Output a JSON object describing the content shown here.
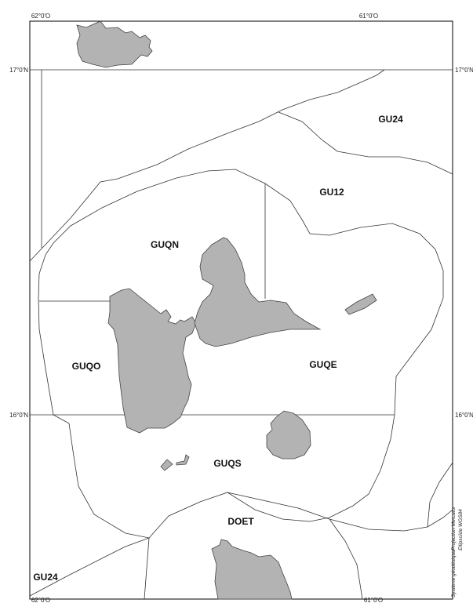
{
  "map": {
    "coords": {
      "top_left_lon": "62°0'O",
      "top_right_lon": "61°0'O",
      "bottom_left_lon": "62°0'O",
      "bottom_right_lon": "61°0'O",
      "left_lat_17": "17°0'N",
      "right_lat_17": "17°0'N",
      "left_lat_16": "16°0'N",
      "right_lat_16": "16°0'N"
    },
    "zones": {
      "gu24_top": "GU24",
      "gu12": "GU12",
      "guqn": "GUQN",
      "guqo": "GUQO",
      "guqe": "GUQE",
      "guqs": "GUQS",
      "doet": "DOET",
      "gu24_bottom": "GU24"
    },
    "notes": {
      "projection": "Projection Mercator",
      "system": "Système géodésique",
      "ellipsoid": "Ellipsoïde WGS84"
    },
    "colors": {
      "land": "#b3b3b3",
      "lines": "#333333"
    }
  }
}
